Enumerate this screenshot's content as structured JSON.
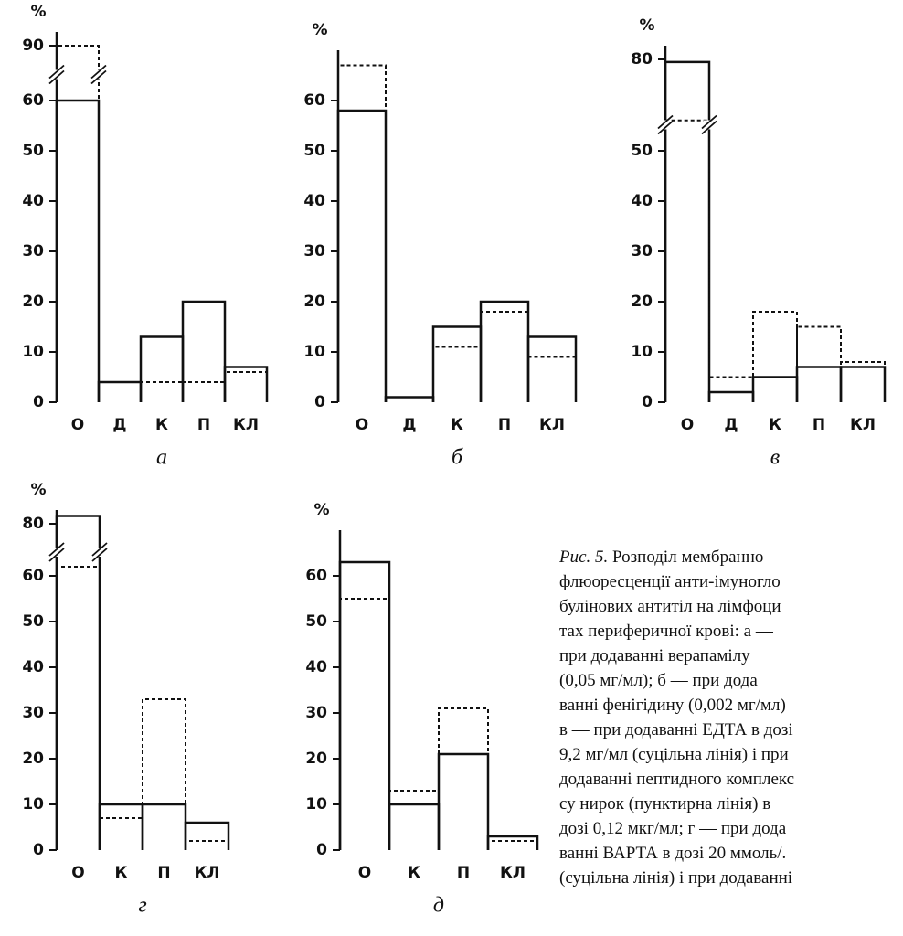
{
  "chart_data": [
    {
      "type": "step",
      "title": "а",
      "y_label": "%",
      "categories": [
        "О",
        "Д",
        "К",
        "П",
        "КЛ"
      ],
      "series": [
        {
          "color": "#111111",
          "style": "solid",
          "values": [
            60,
            4,
            13,
            20,
            7
          ]
        },
        {
          "color": "#111111",
          "style": "dashed",
          "values": [
            90,
            4,
            4,
            4,
            6
          ]
        }
      ],
      "ylim": [
        0,
        90
      ],
      "yticks": [
        0,
        10,
        20,
        30,
        40,
        50,
        60,
        90
      ],
      "y_break": true
    },
    {
      "type": "step",
      "title": "б",
      "y_label": "%",
      "categories": [
        "О",
        "Д",
        "К",
        "П",
        "КЛ"
      ],
      "series": [
        {
          "color": "#111111",
          "style": "solid",
          "values": [
            58,
            1,
            15,
            20,
            13
          ]
        },
        {
          "color": "#111111",
          "style": "dashed",
          "values": [
            67,
            1,
            11,
            18,
            9
          ]
        }
      ],
      "ylim": [
        0,
        70
      ],
      "yticks": [
        0,
        10,
        20,
        30,
        40,
        50,
        60
      ],
      "y_break": false
    },
    {
      "type": "step",
      "title": "в",
      "y_label": "%",
      "categories": [
        "О",
        "Д",
        "К",
        "П",
        "КЛ"
      ],
      "series": [
        {
          "color": "#111111",
          "style": "solid",
          "values": [
            79,
            2,
            5,
            7,
            7
          ]
        },
        {
          "color": "#111111",
          "style": "dashed",
          "values": [
            57,
            5,
            18,
            15,
            8
          ]
        }
      ],
      "ylim": [
        0,
        80
      ],
      "yticks": [
        0,
        10,
        20,
        30,
        40,
        50,
        80
      ],
      "y_break": true
    },
    {
      "type": "step",
      "title": "г",
      "y_label": "%",
      "categories": [
        "О",
        "К",
        "П",
        "КЛ"
      ],
      "series": [
        {
          "color": "#111111",
          "style": "solid",
          "values": [
            84,
            10,
            10,
            6
          ]
        },
        {
          "color": "#111111",
          "style": "dashed",
          "values": [
            62,
            7,
            33,
            2
          ]
        }
      ],
      "ylim": [
        0,
        84
      ],
      "yticks": [
        0,
        10,
        20,
        30,
        40,
        50,
        60,
        80
      ],
      "y_break": true
    },
    {
      "type": "step",
      "title": "д",
      "y_label": "%",
      "categories": [
        "О",
        "К",
        "П",
        "КЛ"
      ],
      "series": [
        {
          "color": "#111111",
          "style": "solid",
          "values": [
            63,
            10,
            21,
            3
          ]
        },
        {
          "color": "#111111",
          "style": "dashed",
          "values": [
            55,
            13,
            31,
            2
          ]
        }
      ],
      "ylim": [
        0,
        70
      ],
      "yticks": [
        0,
        10,
        20,
        30,
        40,
        50,
        60
      ],
      "y_break": false
    }
  ],
  "caption": {
    "lead": "Рис. 5.",
    "lines": [
      "Розподіл мембранно",
      "флюоресценції анти-імуногло",
      "булінових антитіл на лімфоци",
      "тах периферичної крові: а —",
      "при додаванні верапамілу",
      "(0,05 мг/мл); б — при дода",
      "ванні фенігідину (0,002 мг/мл)",
      "в — при додаванні ЕДТА в дозі",
      "9,2 мг/мл (суцільна лінія) і при",
      "додаванні пептидного комплекс",
      "су нирок (пунктирна лінія) в",
      "дозі 0,12 мкг/мл; г — при дода",
      "ванні ВАРТА в дозі 20 ммоль/.",
      "(суцільна лінія) і при додаванні"
    ]
  }
}
